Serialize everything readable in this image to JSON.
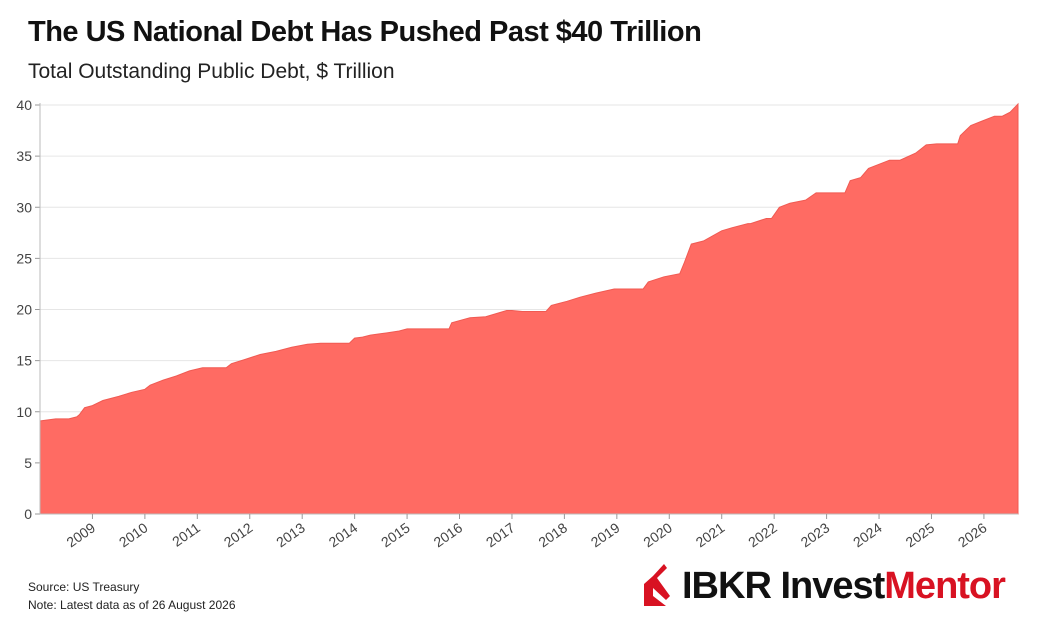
{
  "header": {
    "title": "The US National Debt Has Pushed Past $40 Trillion",
    "subtitle": "Total Outstanding Public Debt, $ Trillion"
  },
  "footer": {
    "source": "Source: US Treasury",
    "note": "Note: Latest data as of 26 August 2026"
  },
  "logo": {
    "ibkr": "IBKR",
    "invest": "Invest",
    "mentor": "Mentor",
    "colors": {
      "mark": "#d81222",
      "text": "#111111",
      "accent": "#d81222"
    }
  },
  "chart_data": {
    "type": "area",
    "title": "The US National Debt Has Pushed Past $40 Trillion",
    "subtitle": "Total Outstanding Public Debt, $ Trillion",
    "xlabel": "",
    "ylabel": "",
    "ylim": [
      0,
      40
    ],
    "yticks": [
      0,
      5,
      10,
      15,
      20,
      25,
      30,
      35,
      40
    ],
    "xlim": [
      2008.0,
      2026.65
    ],
    "xticks": [
      2009,
      2010,
      2011,
      2012,
      2013,
      2014,
      2015,
      2016,
      2017,
      2018,
      2019,
      2020,
      2021,
      2022,
      2023,
      2024,
      2025,
      2026
    ],
    "grid": "horizontal",
    "fill_color": "#ff6b63",
    "series": [
      {
        "name": "",
        "x": [
          2008.0,
          2008.3,
          2008.55,
          2008.7,
          2008.75,
          2008.85,
          2009.0,
          2009.2,
          2009.5,
          2009.75,
          2010.0,
          2010.1,
          2010.35,
          2010.6,
          2010.85,
          2011.1,
          2011.3,
          2011.55,
          2011.65,
          2011.9,
          2012.2,
          2012.5,
          2012.8,
          2013.1,
          2013.35,
          2013.45,
          2013.9,
          2014.0,
          2014.15,
          2014.3,
          2014.6,
          2014.85,
          2015.0,
          2015.2,
          2015.8,
          2015.85,
          2016.2,
          2016.5,
          2016.7,
          2016.9,
          2017.0,
          2017.2,
          2017.65,
          2017.75,
          2017.9,
          2018.05,
          2018.3,
          2018.6,
          2018.95,
          2019.05,
          2019.5,
          2019.6,
          2019.9,
          2020.2,
          2020.28,
          2020.42,
          2020.65,
          2021.0,
          2021.2,
          2021.5,
          2021.55,
          2021.85,
          2021.95,
          2022.1,
          2022.3,
          2022.6,
          2022.8,
          2023.0,
          2023.35,
          2023.45,
          2023.65,
          2023.8,
          2024.2,
          2024.4,
          2024.7,
          2024.9,
          2025.1,
          2025.5,
          2025.55,
          2025.75,
          2025.95,
          2026.2,
          2026.35,
          2026.5,
          2026.65
        ],
        "values": [
          9.1,
          9.3,
          9.3,
          9.5,
          9.7,
          10.4,
          10.6,
          11.1,
          11.5,
          11.9,
          12.2,
          12.6,
          13.1,
          13.5,
          14.0,
          14.3,
          14.3,
          14.3,
          14.7,
          15.1,
          15.6,
          15.9,
          16.3,
          16.6,
          16.7,
          16.7,
          16.7,
          17.2,
          17.3,
          17.5,
          17.7,
          17.9,
          18.1,
          18.1,
          18.1,
          18.7,
          19.2,
          19.3,
          19.6,
          19.9,
          19.9,
          19.8,
          19.8,
          20.4,
          20.6,
          20.8,
          21.2,
          21.6,
          22.0,
          22.0,
          22.0,
          22.7,
          23.2,
          23.5,
          24.5,
          26.4,
          26.7,
          27.7,
          28.0,
          28.4,
          28.4,
          28.9,
          28.9,
          30.0,
          30.4,
          30.7,
          31.4,
          31.4,
          31.4,
          32.6,
          32.9,
          33.8,
          34.6,
          34.6,
          35.3,
          36.1,
          36.2,
          36.2,
          37.0,
          38.0,
          38.4,
          38.9,
          38.9,
          39.3,
          40.1
        ]
      }
    ]
  }
}
